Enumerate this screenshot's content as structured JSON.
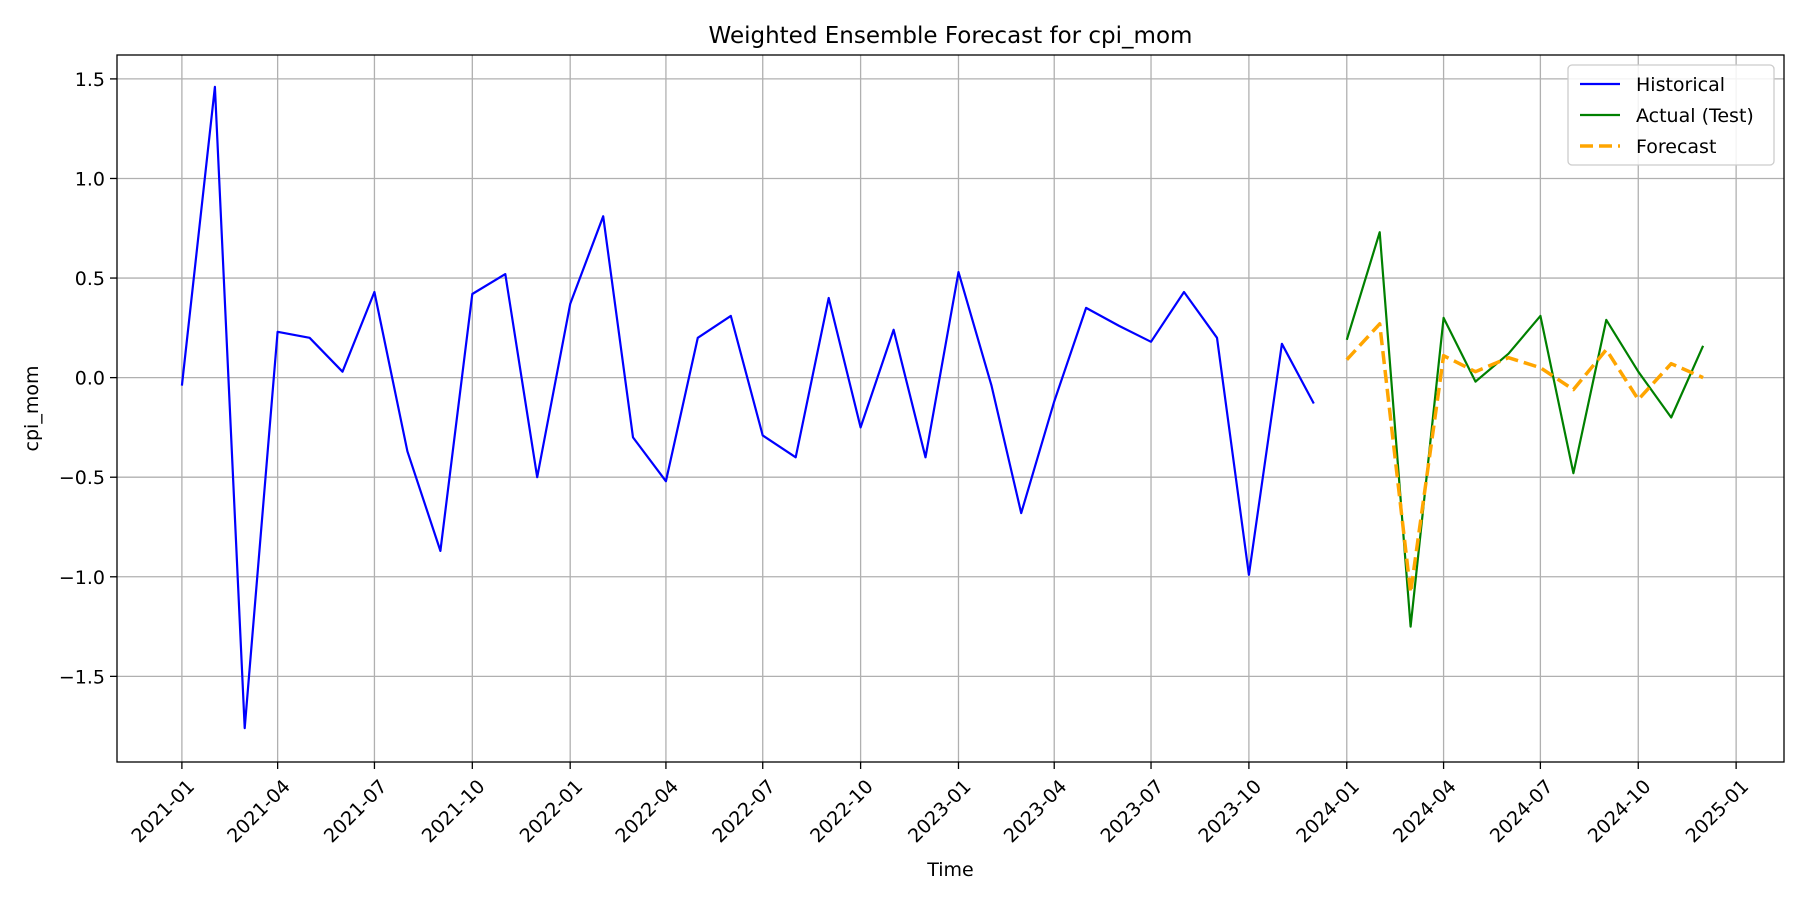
{
  "chart_data": {
    "type": "line",
    "title": "Weighted Ensemble Forecast for cpi_mom",
    "xlabel": "Time",
    "ylabel": "cpi_mom",
    "xlim": [
      "2020-11-01",
      "2025-02-15"
    ],
    "ylim": [
      -1.93,
      1.62
    ],
    "grid": true,
    "legend_position": "top-right",
    "x_ticks": [
      "2021-01",
      "2021-04",
      "2021-07",
      "2021-10",
      "2022-01",
      "2022-04",
      "2022-07",
      "2022-10",
      "2023-01",
      "2023-04",
      "2023-07",
      "2023-10",
      "2024-01",
      "2024-04",
      "2024-07",
      "2024-10",
      "2025-01"
    ],
    "y_ticks": [
      -1.5,
      -1.0,
      -0.5,
      0.0,
      0.5,
      1.0,
      1.5
    ],
    "y_tick_labels": [
      "−1.5",
      "−1.0",
      "−0.5",
      "0.0",
      "0.5",
      "1.0",
      "1.5"
    ],
    "series": [
      {
        "name": "Historical",
        "color": "#0000ff",
        "style": "solid",
        "x": [
          "2021-01",
          "2021-02",
          "2021-03",
          "2021-04",
          "2021-05",
          "2021-06",
          "2021-07",
          "2021-08",
          "2021-09",
          "2021-10",
          "2021-11",
          "2021-12",
          "2022-01",
          "2022-02",
          "2022-03",
          "2022-04",
          "2022-05",
          "2022-06",
          "2022-07",
          "2022-08",
          "2022-09",
          "2022-10",
          "2022-11",
          "2022-12",
          "2023-01",
          "2023-02",
          "2023-03",
          "2023-04",
          "2023-05",
          "2023-06",
          "2023-07",
          "2023-08",
          "2023-09",
          "2023-10",
          "2023-11",
          "2023-12"
        ],
        "values": [
          -0.04,
          1.46,
          -1.76,
          0.23,
          0.2,
          0.03,
          0.43,
          -0.37,
          -0.87,
          0.42,
          0.52,
          -0.5,
          0.37,
          0.81,
          -0.3,
          -0.52,
          0.2,
          0.31,
          -0.29,
          -0.4,
          0.4,
          -0.25,
          0.24,
          -0.4,
          0.53,
          -0.04,
          -0.68,
          -0.12,
          0.35,
          0.26,
          0.18,
          0.43,
          0.2,
          -0.99,
          0.17,
          -0.13
        ]
      },
      {
        "name": "Actual (Test)",
        "color": "#008000",
        "style": "solid",
        "x": [
          "2024-01",
          "2024-02",
          "2024-03",
          "2024-04",
          "2024-05",
          "2024-06",
          "2024-07",
          "2024-08",
          "2024-09",
          "2024-10",
          "2024-11",
          "2024-12"
        ],
        "values": [
          0.19,
          0.73,
          -1.25,
          0.3,
          -0.02,
          0.12,
          0.31,
          -0.48,
          0.29,
          0.03,
          -0.2,
          0.16
        ]
      },
      {
        "name": "Forecast",
        "color": "#ffa500",
        "style": "dashed",
        "x": [
          "2024-01",
          "2024-02",
          "2024-03",
          "2024-04",
          "2024-05",
          "2024-06",
          "2024-07",
          "2024-08",
          "2024-09",
          "2024-10",
          "2024-11",
          "2024-12"
        ],
        "values": [
          0.09,
          0.27,
          -1.08,
          0.11,
          0.03,
          0.1,
          0.05,
          -0.06,
          0.14,
          -0.11,
          0.07,
          0.0
        ]
      }
    ]
  }
}
